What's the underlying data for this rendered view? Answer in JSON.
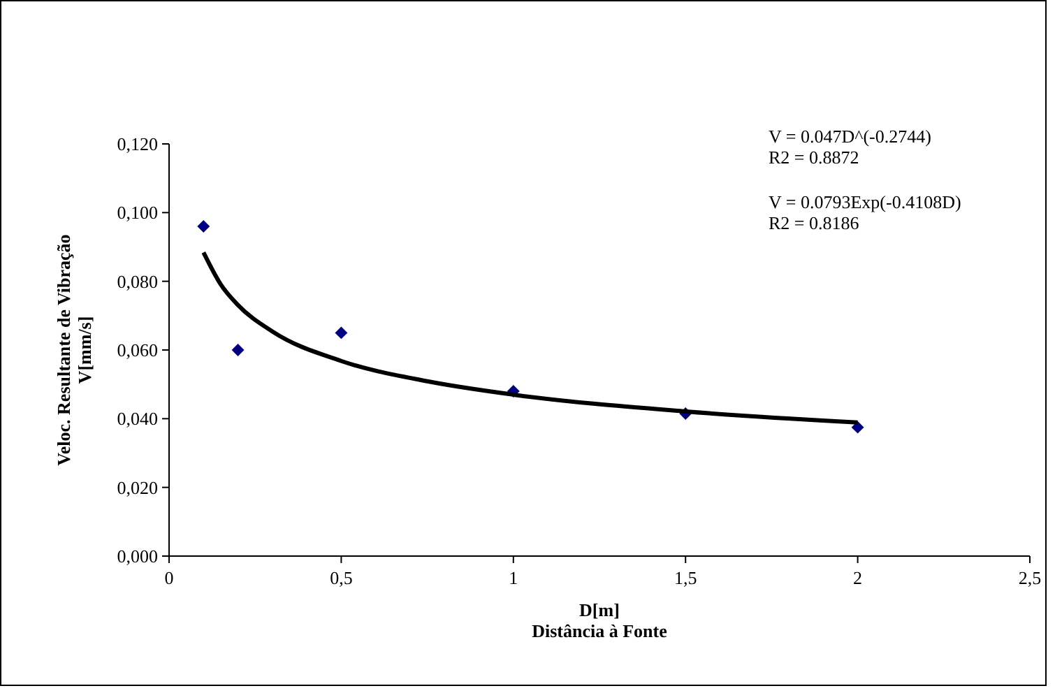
{
  "chart_data": {
    "type": "scatter",
    "xlabel": "D[m]\nDistância à Fonte",
    "ylabel": "Veloc. Resultante de Vibração\nV[mm/s]",
    "x": [
      0.1,
      0.2,
      0.5,
      1,
      1.5,
      2
    ],
    "series": [
      {
        "type": "scatter",
        "color": "#000080",
        "marker": "diamond",
        "values": [
          0.096,
          0.06,
          0.065,
          0.048,
          0.0415,
          0.0375
        ]
      },
      {
        "type": "line",
        "color": "#000000",
        "marker": "none",
        "line_style": "solid",
        "x": [
          0.1,
          0.15,
          0.2,
          0.3,
          0.5,
          0.75,
          1,
          1.5,
          2
        ],
        "values": [
          0.0884,
          0.0791,
          0.0731,
          0.0654,
          0.0568,
          0.0509,
          0.047,
          0.0421,
          0.0389
        ]
      }
    ],
    "xlim": [
      0,
      2.5
    ],
    "xticks": [
      0,
      {
        "value": 0.5,
        "label": "0,5"
      },
      1,
      {
        "value": 1.5,
        "label": "1,5"
      },
      2,
      {
        "value": 2.5,
        "label": "2,5"
      }
    ],
    "ylim": [
      0,
      0.12
    ],
    "yticks": [
      {
        "value": 0,
        "label": "0,000"
      },
      {
        "value": 0.02,
        "label": "0,020"
      },
      {
        "value": 0.04,
        "label": "0,040"
      },
      {
        "value": 0.06,
        "label": "0,060"
      },
      {
        "value": 0.08,
        "label": "0,080"
      },
      {
        "value": 0.1,
        "label": "0,100"
      },
      {
        "value": 0.12,
        "label": "0,120"
      }
    ],
    "grid": false,
    "annotations": [
      "V = 0.047D^(-0.2744)\nR2 = 0.8872",
      "V = 0.0793Exp(-0.4108D)\nR2 = 0.8186"
    ]
  }
}
